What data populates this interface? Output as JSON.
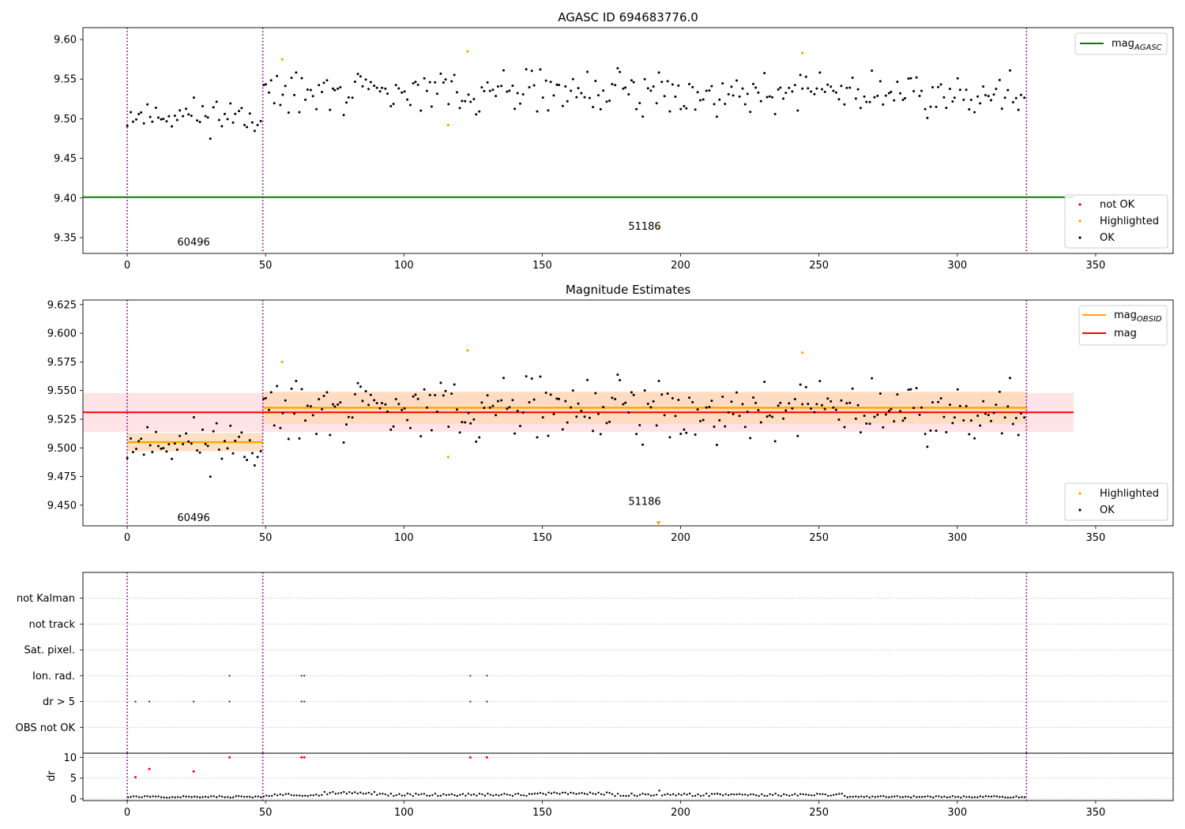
{
  "colors": {
    "ok": "#000000",
    "highlighted": "#ffa500",
    "not_ok": "#ff0000",
    "agasc_line": "#008000",
    "obsid_line": "#ffa500",
    "mag_line": "#ff0000",
    "obsid_band": "#ffd8b8",
    "mag_band": "#ffdfe3",
    "obs_boundary": "#800080"
  },
  "chart_data": [
    {
      "name": "agasc-panel",
      "type": "scatter",
      "title": "AGASC ID 694683776.0",
      "xlim": [
        -16,
        378
      ],
      "ylim": [
        9.33,
        9.615
      ],
      "xticks": [
        "0",
        "50",
        "100",
        "150",
        "200",
        "250",
        "300",
        "350"
      ],
      "yticks": [
        "9.35",
        "9.40",
        "9.45",
        "9.50",
        "9.55",
        "9.60"
      ],
      "mag_agasc": 9.401,
      "obs_boundaries": [
        0,
        49,
        325
      ],
      "obs_labels": [
        {
          "text": "60496",
          "x": 24,
          "y": 9.344
        },
        {
          "text": "51186",
          "x": 187,
          "y": 9.364
        }
      ],
      "legend_top": [
        {
          "label_main": "mag",
          "label_sub": "AGASC"
        }
      ],
      "legend_bottom": [
        {
          "label": "not OK"
        },
        {
          "label": "Highlighted"
        },
        {
          "label": "OK"
        }
      ],
      "highlighted_points": [
        [
          56,
          9.575
        ],
        [
          116,
          9.492
        ],
        [
          123,
          9.585
        ],
        [
          244,
          9.583
        ],
        [
          192,
          9.362
        ]
      ],
      "obs_segments": [
        {
          "x_start": 0,
          "x_end": 49,
          "y_mean": 9.505,
          "spread": 0.011
        },
        {
          "x_start": 49,
          "x_end": 325,
          "y_mean": 9.534,
          "spread": 0.013
        }
      ]
    },
    {
      "name": "estimates-panel",
      "type": "scatter",
      "title": "Magnitude Estimates",
      "xlim": [
        -16,
        378
      ],
      "ylim": [
        9.432,
        9.629
      ],
      "xticks": [
        "0",
        "50",
        "100",
        "150",
        "200",
        "250",
        "300",
        "350"
      ],
      "yticks": [
        "9.450",
        "9.475",
        "9.500",
        "9.525",
        "9.550",
        "9.575",
        "9.600",
        "9.625"
      ],
      "mag": 9.531,
      "mag_band": [
        9.514,
        9.548
      ],
      "mag_band_x": [
        -16,
        342
      ],
      "obsid_means": [
        {
          "x_start": 0,
          "x_end": 49,
          "mag": 9.505,
          "band": [
            9.497,
            9.513
          ]
        },
        {
          "x_start": 49,
          "x_end": 325,
          "mag": 9.535,
          "band": [
            9.521,
            9.549
          ]
        }
      ],
      "obs_boundaries": [
        0,
        49,
        325
      ],
      "obs_labels": [
        {
          "text": "60496",
          "x": 24,
          "y": 9.439
        },
        {
          "text": "51186",
          "x": 187,
          "y": 9.453
        }
      ],
      "legend_top": [
        {
          "label_main": "mag",
          "label_sub": "OBSID"
        },
        {
          "label_main": "mag",
          "label_sub": ""
        }
      ],
      "legend_bottom": [
        {
          "label": "Highlighted"
        },
        {
          "label": "OK"
        }
      ],
      "highlighted_points": [
        [
          56,
          9.575
        ],
        [
          116,
          9.492
        ],
        [
          123,
          9.585
        ],
        [
          244,
          9.583
        ]
      ],
      "offscale_marker": [
        192,
        9.434
      ]
    },
    {
      "name": "flags-panel",
      "type": "scatter",
      "xlim": [
        -16,
        378
      ],
      "categories": [
        "not Kalman",
        "not track",
        "Sat. pixel.",
        "Ion. rad.",
        "dr > 5",
        "OBS not OK"
      ],
      "flag_points": {
        "Ion. rad.": [
          37,
          63,
          64,
          124,
          130
        ],
        "dr > 5": [
          3,
          8,
          24,
          37,
          63,
          64,
          124,
          130
        ]
      },
      "obs_boundaries": [
        0,
        49,
        325
      ]
    },
    {
      "name": "dr-panel",
      "type": "scatter",
      "xlim": [
        -16,
        378
      ],
      "ylim": [
        -0.4,
        11
      ],
      "ylabel": "dr",
      "yticks": [
        "0",
        "5",
        "10"
      ],
      "xticks": [
        "0",
        "50",
        "100",
        "150",
        "200",
        "250",
        "300",
        "350"
      ],
      "high_points": [
        [
          3,
          5.2
        ],
        [
          8,
          7.2
        ],
        [
          24,
          6.6
        ],
        [
          37,
          10
        ],
        [
          63,
          10
        ],
        [
          64,
          10
        ],
        [
          124,
          10
        ],
        [
          130,
          10
        ]
      ],
      "obs_boundaries": [
        0,
        49,
        325
      ]
    }
  ]
}
